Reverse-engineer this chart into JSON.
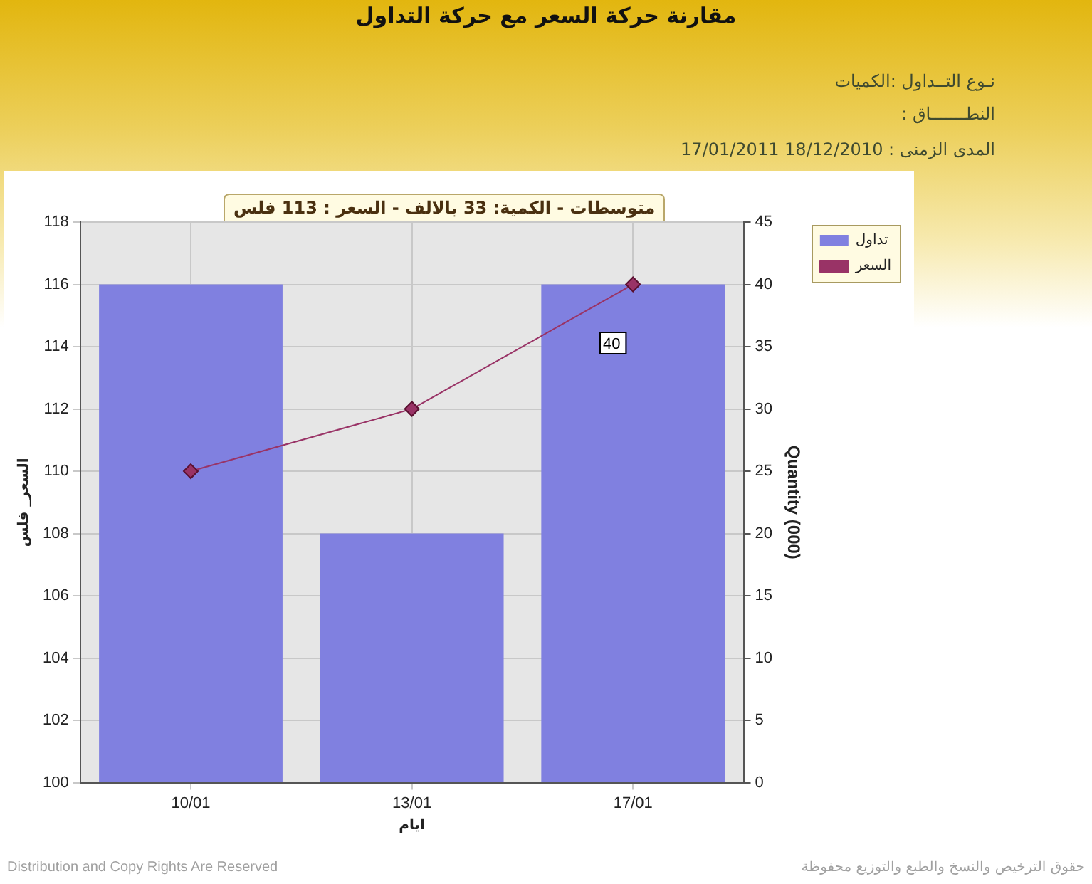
{
  "chart_data": {
    "type": "bar",
    "title": "مقارنة حركة السعر مع حركة التداول",
    "annotations": [
      "نـوع التــداول :الكميات",
      "النطـــــــاق :",
      "المدى الزمنى :   18/12/2010 17/01/2011",
      "متوسطات - الكمية: 33 بالالف  - السعر : 113 فلس",
      "Distribution and Copy Rights Are Reserved",
      "حقوق الترخيص والنسخ والطبع والتوزيع محفوظة"
    ],
    "categories": [
      "10/01",
      "13/01",
      "17/01"
    ],
    "series": [
      {
        "name": "تداول",
        "axis": "y2",
        "color": "#8080e0",
        "values": [
          40,
          20,
          40
        ],
        "value_labels": [
          null,
          null,
          "40"
        ]
      },
      {
        "name": "السعر",
        "type": "line",
        "color": "#993366",
        "values": [
          110,
          112,
          116
        ]
      }
    ],
    "xlabel": "ايام",
    "ylabel": "السعر_ فلس",
    "y2label": "Quantity (000)",
    "ylim": [
      100,
      118
    ],
    "yticks": [
      100,
      102,
      104,
      106,
      108,
      110,
      112,
      114,
      116,
      118
    ],
    "y2lim": [
      0,
      45
    ],
    "y2ticks": [
      0,
      5,
      10,
      15,
      20,
      25,
      30,
      35,
      40,
      45
    ],
    "grid": true,
    "legend": "top right",
    "marker": "diamond",
    "line_style": "solid"
  }
}
